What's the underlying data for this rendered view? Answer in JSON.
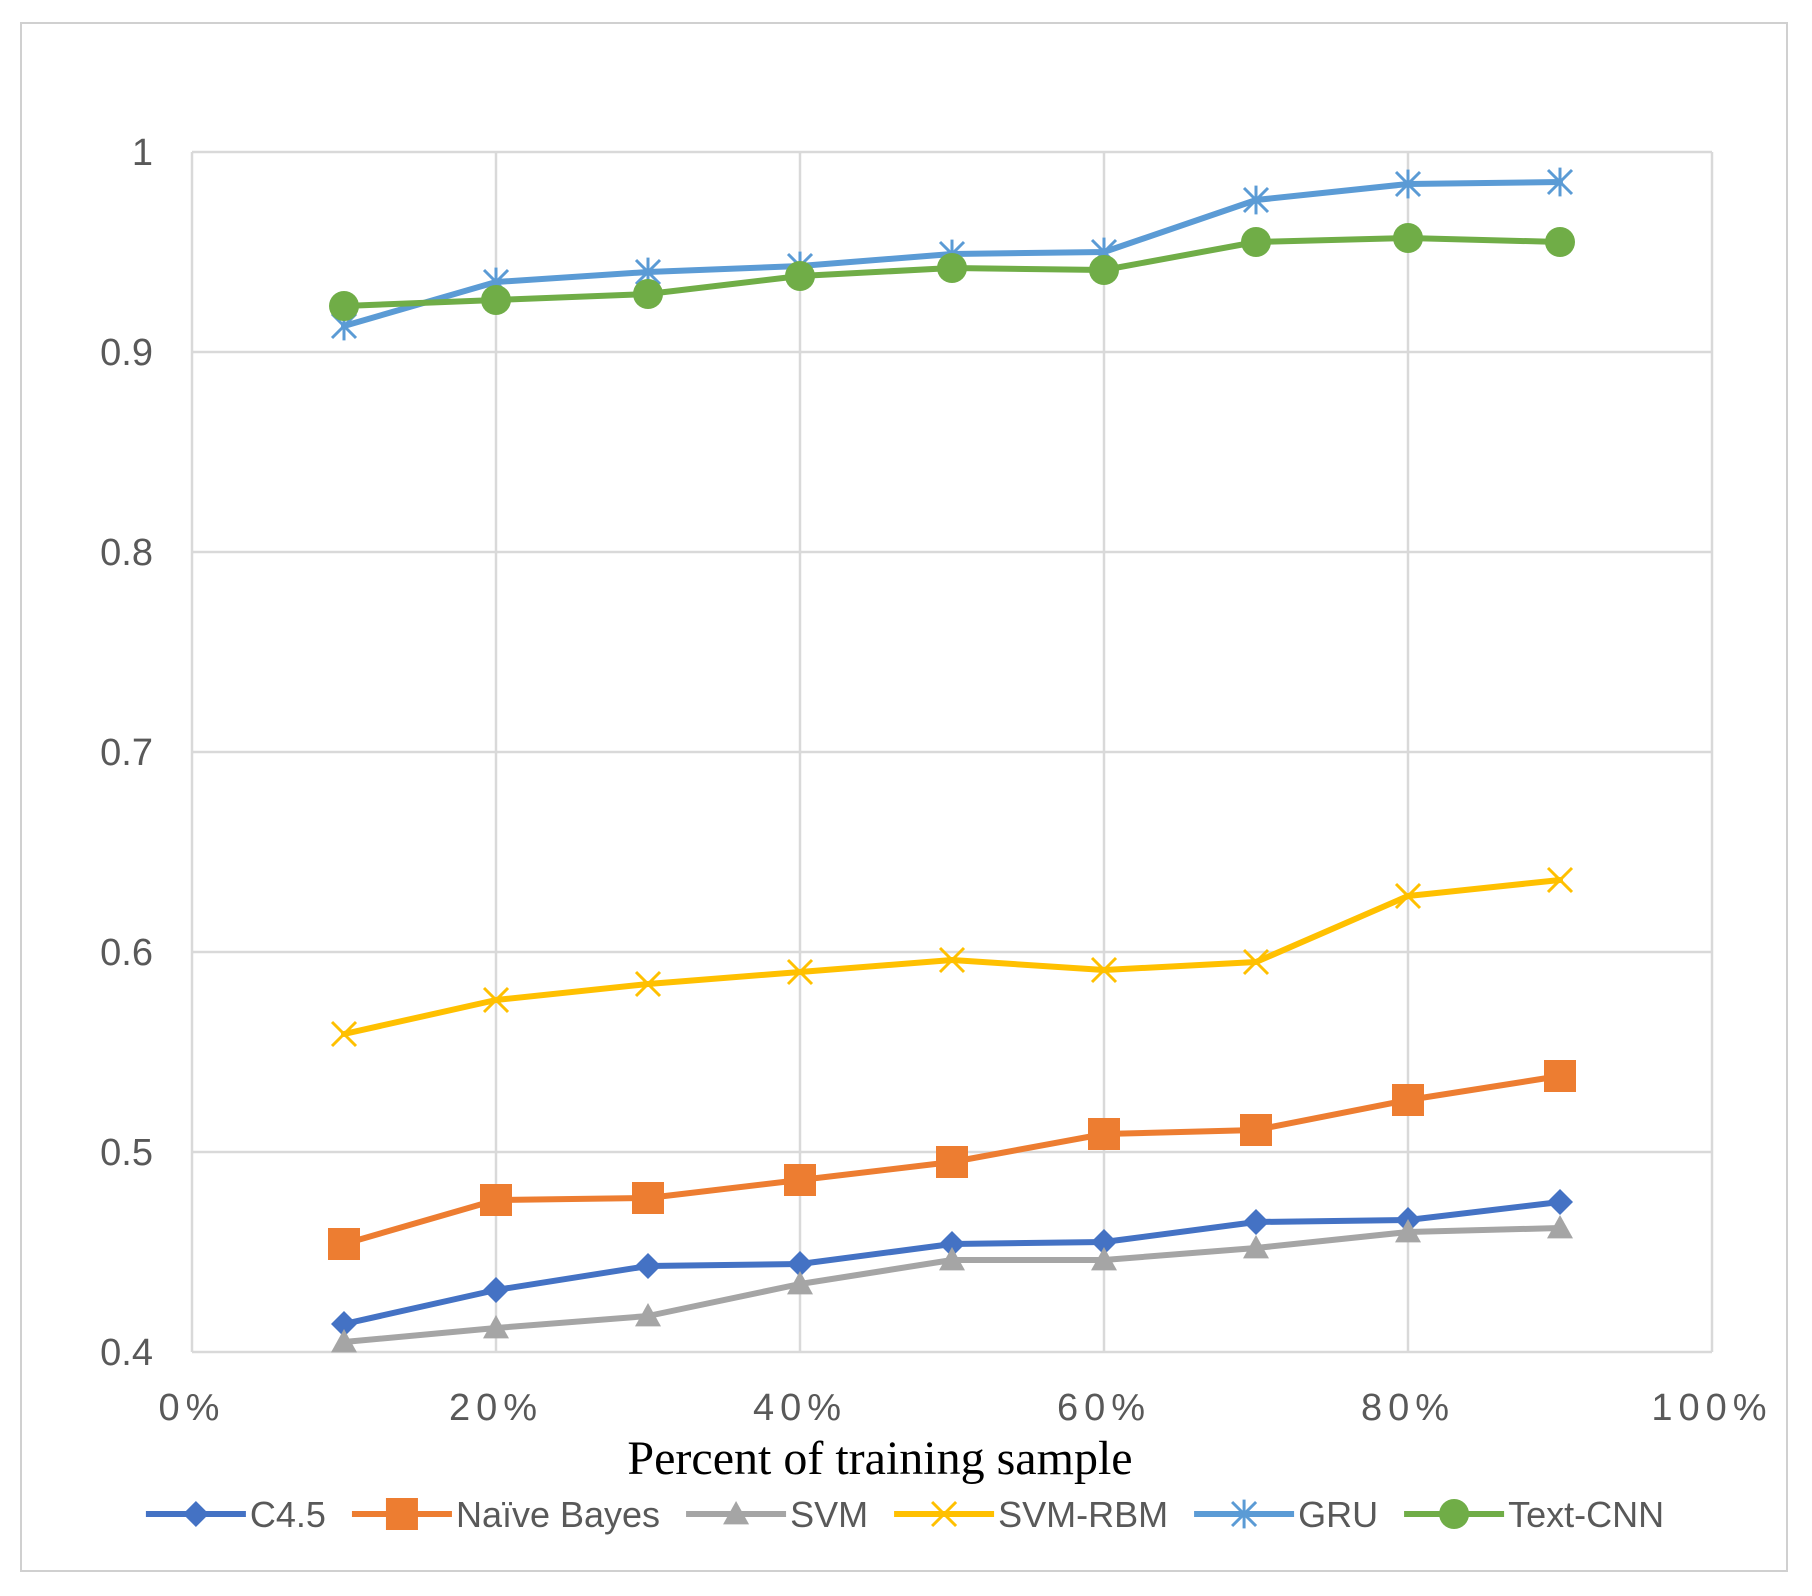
{
  "chart_data": {
    "type": "line",
    "title": "",
    "xlabel": "Percent of training sample",
    "ylabel": "",
    "xlim": [
      0,
      100
    ],
    "ylim": [
      0.4,
      1.0
    ],
    "x_ticks": [
      0,
      20,
      40,
      60,
      80,
      100
    ],
    "x_tick_labels": [
      "0%",
      "20%",
      "40%",
      "60%",
      "80%",
      "100%"
    ],
    "y_ticks": [
      0.4,
      0.5,
      0.6,
      0.7,
      0.8,
      0.9,
      1.0
    ],
    "y_tick_labels": [
      "0.4",
      "0.5",
      "0.6",
      "0.7",
      "0.8",
      "0.9",
      "1"
    ],
    "grid": true,
    "legend_position": "bottom",
    "x": [
      10,
      20,
      30,
      40,
      50,
      60,
      70,
      80,
      90
    ],
    "series": [
      {
        "name": "C4.5",
        "color": "#4472c4",
        "marker": "diamond",
        "values": [
          0.414,
          0.431,
          0.443,
          0.444,
          0.454,
          0.455,
          0.465,
          0.466,
          0.475
        ]
      },
      {
        "name": "Naïve Bayes",
        "color": "#ed7d31",
        "marker": "square",
        "values": [
          0.454,
          0.476,
          0.477,
          0.486,
          0.495,
          0.509,
          0.511,
          0.526,
          0.538
        ]
      },
      {
        "name": "SVM",
        "color": "#a5a5a5",
        "marker": "triangle",
        "values": [
          0.405,
          0.412,
          0.418,
          0.434,
          0.446,
          0.446,
          0.452,
          0.46,
          0.462
        ]
      },
      {
        "name": "SVM-RBM",
        "color": "#ffc000",
        "marker": "x",
        "values": [
          0.559,
          0.576,
          0.584,
          0.59,
          0.596,
          0.591,
          0.595,
          0.628,
          0.636
        ]
      },
      {
        "name": "GRU",
        "color": "#5b9bd5",
        "marker": "star",
        "values": [
          0.913,
          0.935,
          0.94,
          0.943,
          0.949,
          0.95,
          0.976,
          0.984,
          0.985
        ]
      },
      {
        "name": "Text-CNN",
        "color": "#70ad47",
        "marker": "circle",
        "values": [
          0.923,
          0.926,
          0.929,
          0.938,
          0.942,
          0.941,
          0.955,
          0.957,
          0.955
        ]
      }
    ]
  }
}
